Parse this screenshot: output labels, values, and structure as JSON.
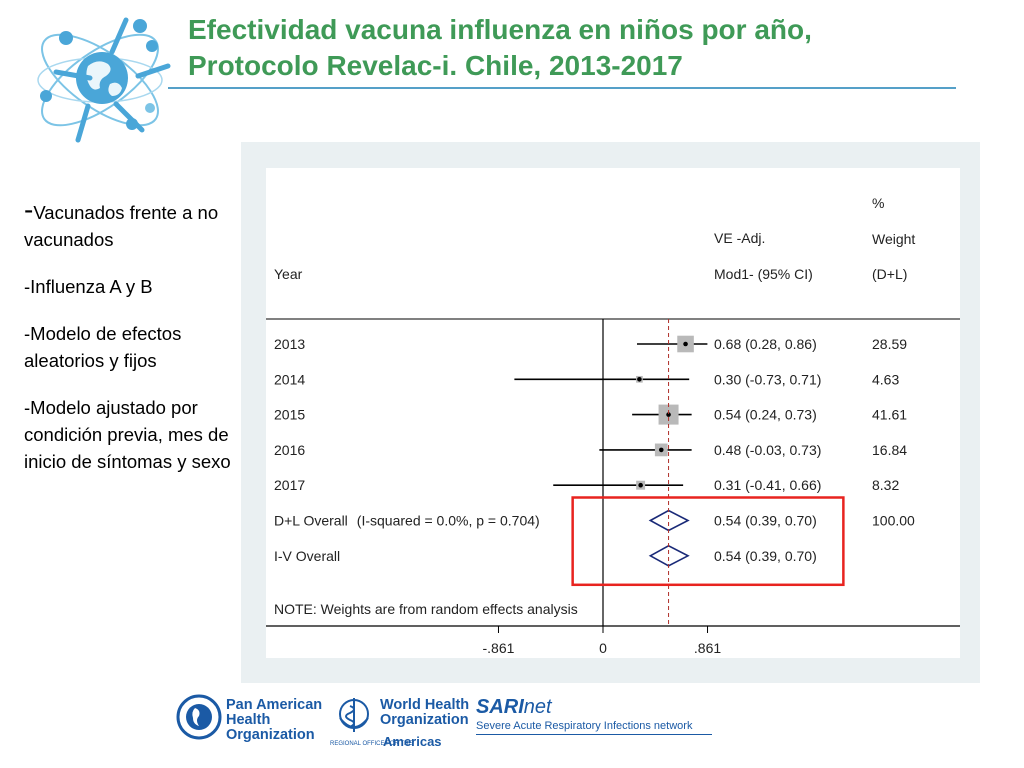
{
  "header": {
    "title_line1": "Efectividad  vacuna influenza en niños por año,",
    "title_line2": "Protocolo Revelac-i. Chile, 2013-2017"
  },
  "bullets": [
    "-Vacunados frente a no vacunados",
    "-Influenza A y B",
    "-Modelo de efectos aleatorios y fijos",
    "-Modelo ajustado por condición previa, mes de inicio de síntomas y sexo"
  ],
  "chart_data": {
    "type": "forest",
    "columns": {
      "study": "Year",
      "effect": [
        "VE -Adj.",
        "Mod1- (95% CI)"
      ],
      "weight": [
        "%",
        "Weight",
        "(D+L)"
      ]
    },
    "rows": [
      {
        "label": "2013",
        "ve": 0.68,
        "lo": 0.28,
        "hi": 0.86,
        "ci_text": "0.68 (0.28, 0.86)",
        "weight": 28.59,
        "weight_text": "28.59"
      },
      {
        "label": "2014",
        "ve": 0.3,
        "lo": -0.73,
        "hi": 0.71,
        "ci_text": "0.30 (-0.73, 0.71)",
        "weight": 4.63,
        "weight_text": "4.63"
      },
      {
        "label": "2015",
        "ve": 0.54,
        "lo": 0.24,
        "hi": 0.73,
        "ci_text": "0.54 (0.24, 0.73)",
        "weight": 41.61,
        "weight_text": "41.61"
      },
      {
        "label": "2016",
        "ve": 0.48,
        "lo": -0.03,
        "hi": 0.73,
        "ci_text": "0.48 (-0.03, 0.73)",
        "weight": 16.84,
        "weight_text": "16.84"
      },
      {
        "label": "2017",
        "ve": 0.31,
        "lo": -0.41,
        "hi": 0.66,
        "ci_text": "0.31 (-0.41, 0.66)",
        "weight": 8.32,
        "weight_text": "8.32"
      }
    ],
    "overall": [
      {
        "label": "D+L Overall",
        "note": "(I-squared = 0.0%, p = 0.704)",
        "ve": 0.54,
        "lo": 0.39,
        "hi": 0.7,
        "ci_text": "0.54 (0.39, 0.70)",
        "weight_text": "100.00"
      },
      {
        "label": "I-V Overall",
        "note": "",
        "ve": 0.54,
        "lo": 0.39,
        "hi": 0.7,
        "ci_text": "0.54 (0.39, 0.70)",
        "weight_text": ""
      }
    ],
    "note": "NOTE: Weights are from random effects analysis",
    "x_ticks": [
      {
        "value": -0.861,
        "label": "-.861"
      },
      {
        "value": 0,
        "label": "0"
      },
      {
        "value": 0.861,
        "label": ".861"
      }
    ],
    "null_line": 0,
    "overall_line": 0.54,
    "highlight": "overall-rows",
    "colors": {
      "ci_line": "#000000",
      "weight_box": "#b9b9b9",
      "diamond": "#1a2a78",
      "overall_line": "#b0302a",
      "highlight": "#e8231f"
    }
  },
  "footer": {
    "paho": [
      "Pan American",
      "Health",
      "Organization"
    ],
    "who": [
      "World Health",
      "Organization"
    ],
    "who_small": "REGIONAL OFFICE FOR THE",
    "who_americas": "Americas",
    "sari_name": "SARI",
    "sari_net": "net",
    "sari_sub": "Severe Acute Respiratory Infections network"
  }
}
